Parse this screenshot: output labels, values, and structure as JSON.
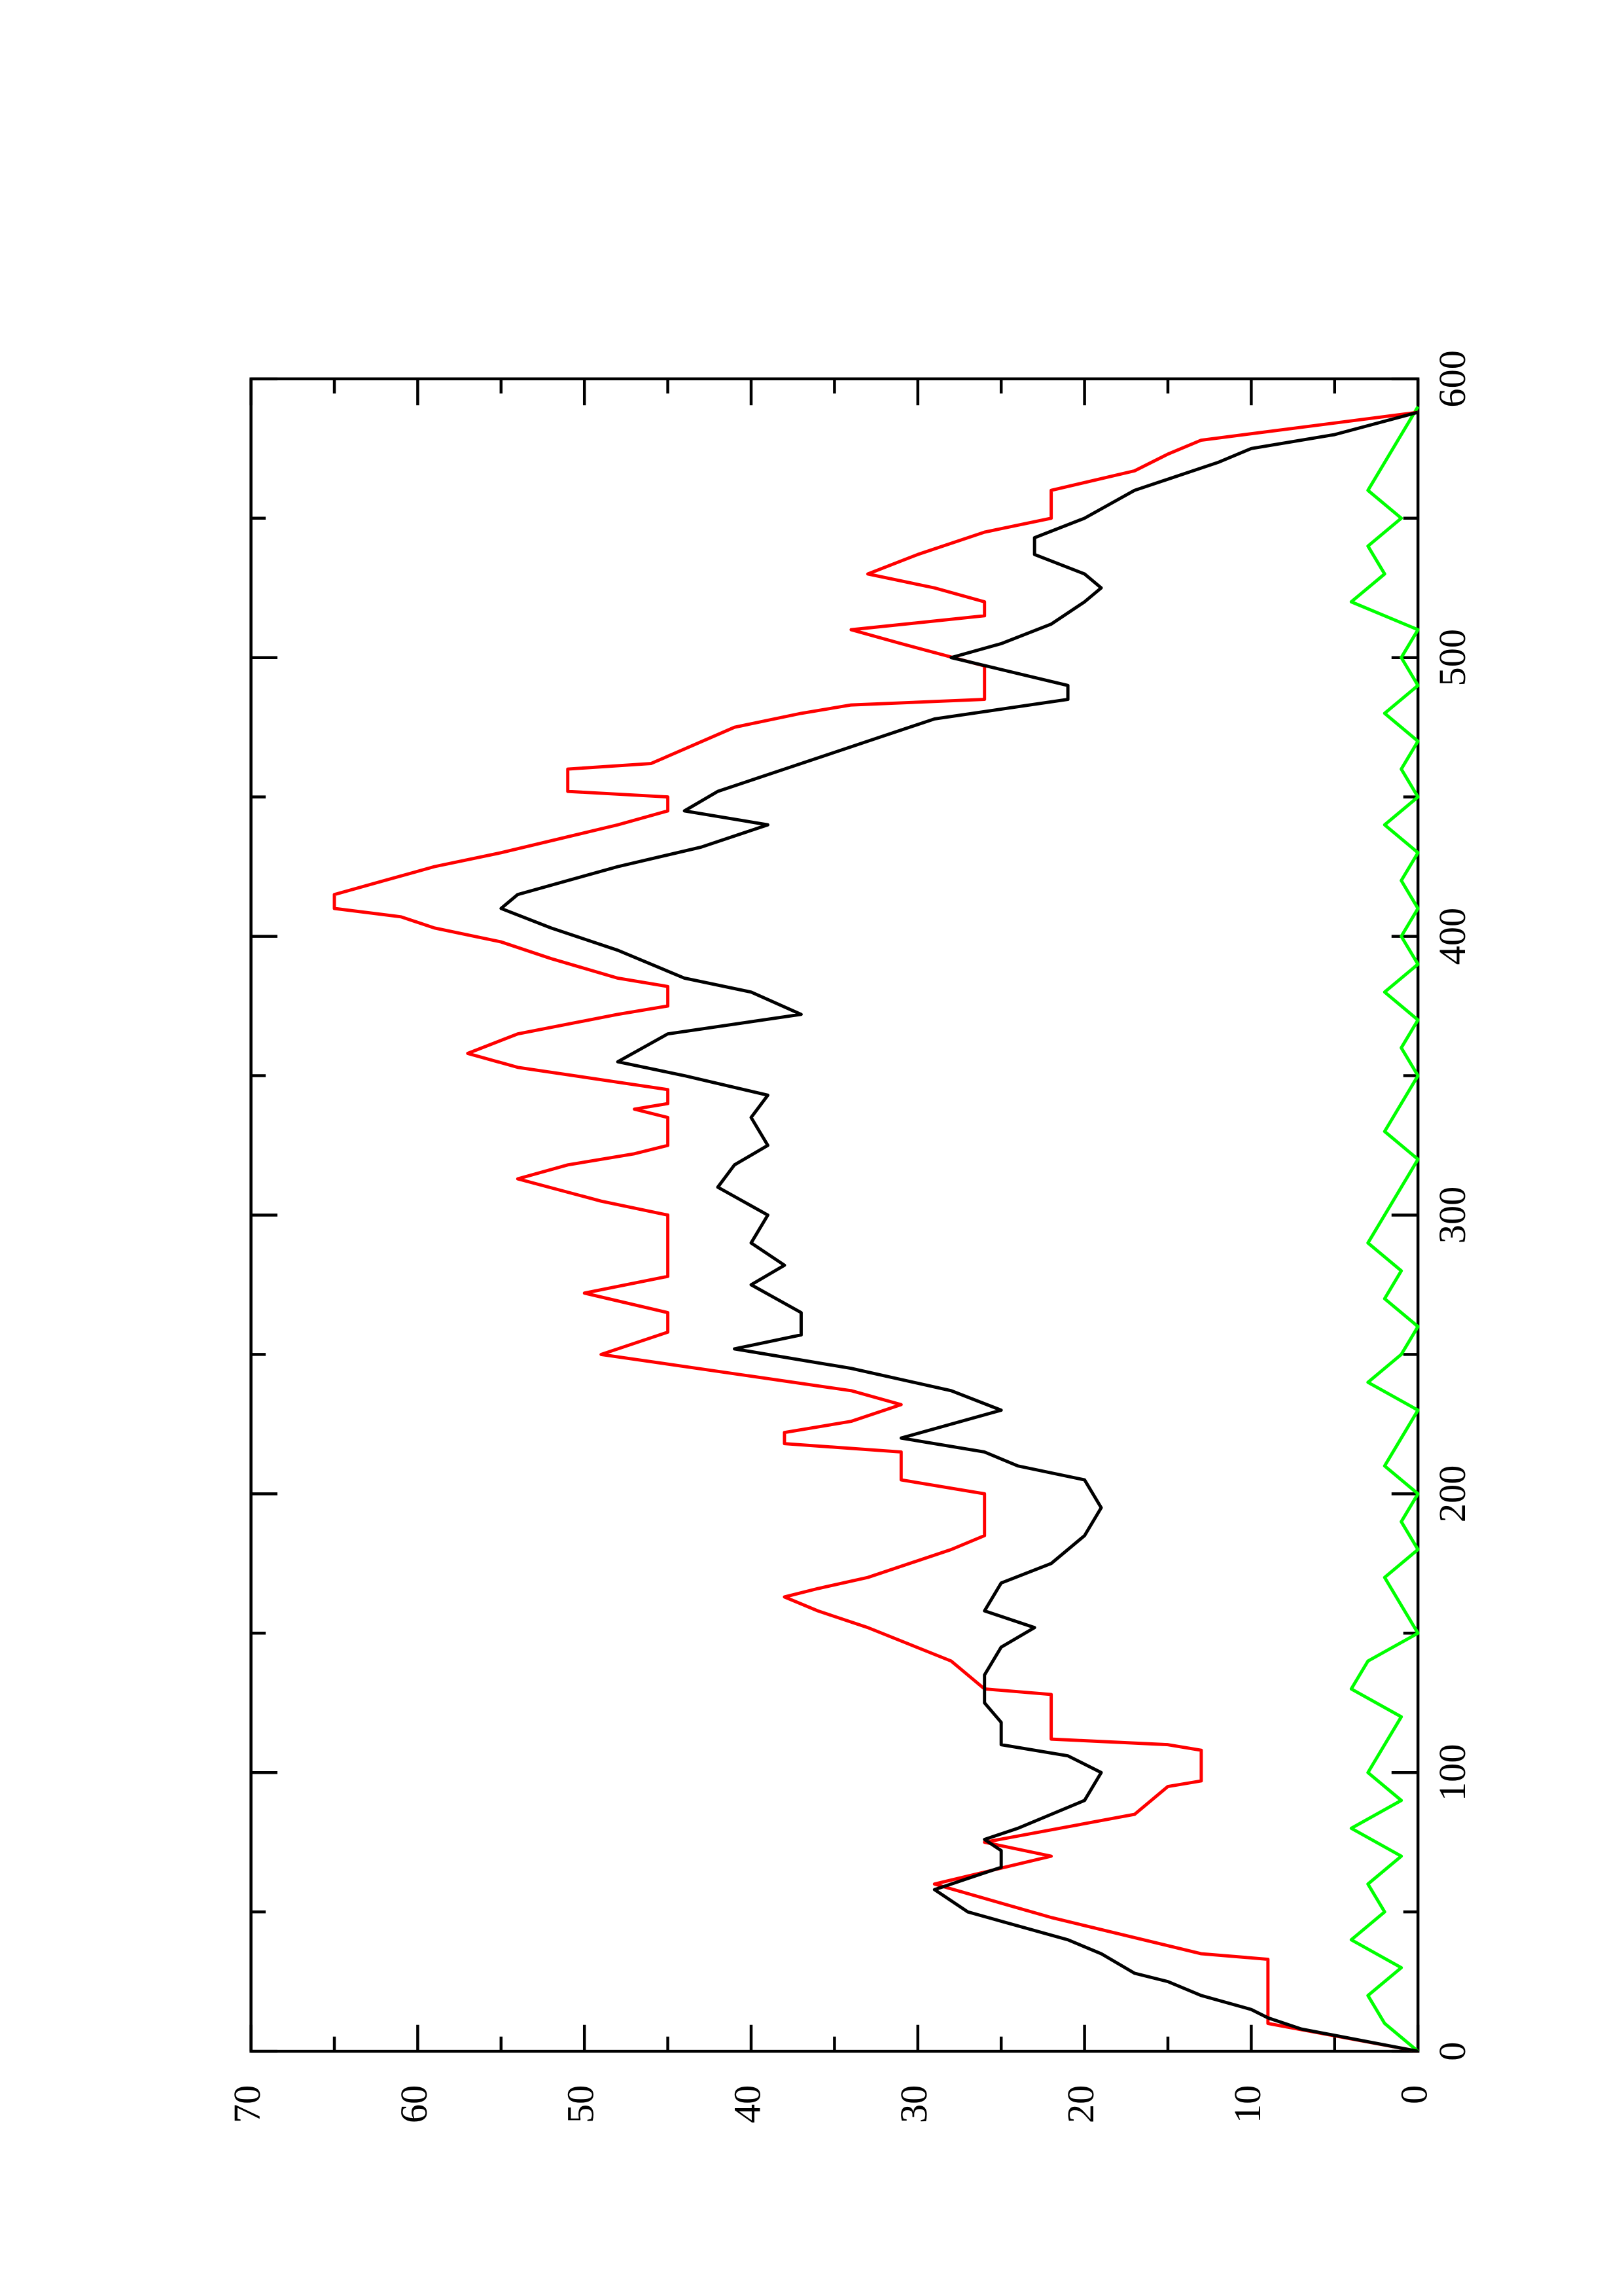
{
  "chart_data": {
    "type": "line",
    "xlim": [
      0,
      600
    ],
    "xticks": [
      0,
      100,
      200,
      300,
      400,
      500,
      600
    ],
    "xminor_ticks": [
      50,
      150,
      250,
      350,
      450,
      550
    ],
    "ylim": [
      0,
      70
    ],
    "yticks": [
      0,
      10,
      20,
      30,
      40,
      50,
      60,
      70
    ],
    "yminor_ticks": [
      5,
      15,
      25,
      35,
      45,
      55,
      65
    ],
    "rotation": -90,
    "series": [
      {
        "color": "#ff0000",
        "x": [
          0,
          10,
          33,
          35,
          48,
          60,
          70,
          75,
          85,
          95,
          97,
          108,
          110,
          112,
          128,
          130,
          140,
          152,
          158,
          163,
          166,
          170,
          180,
          185,
          200,
          205,
          215,
          218,
          222,
          226,
          232,
          237,
          250,
          258,
          265,
          272,
          278,
          300,
          305,
          313,
          318,
          322,
          325,
          335,
          338,
          340,
          345,
          353,
          358,
          365,
          372,
          375,
          382,
          385,
          392,
          398,
          403,
          407,
          410,
          415,
          420,
          425,
          430,
          440,
          445,
          450,
          452,
          460,
          462,
          475,
          480,
          483,
          485,
          497,
          505,
          510,
          515,
          520,
          525,
          530,
          537,
          545,
          550,
          560,
          567,
          573,
          578,
          588
        ],
        "values": [
          0,
          9,
          9,
          13,
          22,
          29,
          22,
          26,
          17,
          15,
          13,
          13,
          15,
          22,
          22,
          26,
          28,
          33,
          36,
          38,
          36,
          33,
          28,
          26,
          26,
          31,
          31,
          38,
          38,
          34,
          31,
          34,
          49,
          45,
          45,
          50,
          45,
          45,
          49,
          54,
          51,
          47,
          45,
          45,
          47,
          45,
          45,
          54,
          57,
          54,
          48,
          45,
          45,
          48,
          52,
          55,
          59,
          61,
          65,
          65,
          62,
          59,
          55,
          48,
          45,
          45,
          51,
          51,
          46,
          41,
          37,
          34,
          26,
          26,
          31,
          34,
          26,
          26,
          29,
          33,
          30,
          26,
          22,
          22,
          17,
          15,
          13,
          0
        ]
      },
      {
        "color": "#000000",
        "x": [
          0,
          8,
          12,
          15,
          20,
          25,
          28,
          35,
          40,
          45,
          50,
          58,
          62,
          66,
          72,
          76,
          80,
          85,
          90,
          100,
          106,
          110,
          118,
          125,
          135,
          145,
          152,
          158,
          168,
          175,
          185,
          195,
          205,
          210,
          215,
          220,
          225,
          230,
          237,
          245,
          252,
          257,
          265,
          275,
          282,
          290,
          300,
          310,
          318,
          325,
          335,
          343,
          350,
          355,
          365,
          372,
          380,
          385,
          395,
          403,
          410,
          415,
          420,
          425,
          432,
          440,
          445,
          452,
          460,
          470,
          478,
          485,
          490,
          500,
          505,
          512,
          520,
          525,
          530,
          537,
          543,
          550,
          560,
          570,
          575,
          580,
          588
        ],
        "values": [
          0,
          7,
          9,
          10,
          13,
          15,
          17,
          19,
          21,
          24,
          27,
          29,
          27,
          25,
          25,
          26,
          24,
          22,
          20,
          19,
          21,
          25,
          25,
          26,
          26,
          25,
          23,
          26,
          25,
          22,
          20,
          19,
          20,
          24,
          26,
          31,
          28,
          25,
          28,
          34,
          41,
          37,
          37,
          40,
          38,
          40,
          39,
          42,
          41,
          39,
          40,
          39,
          44,
          48,
          45,
          37,
          40,
          44,
          48,
          52,
          55,
          54,
          51,
          48,
          43,
          39,
          44,
          42,
          38,
          33,
          29,
          21,
          21,
          28,
          25,
          22,
          20,
          19,
          20,
          23,
          23,
          20,
          17,
          12,
          10,
          5,
          0
        ]
      },
      {
        "color": "#00ff00",
        "x": [
          0,
          10,
          20,
          30,
          40,
          50,
          60,
          70,
          80,
          90,
          100,
          110,
          120,
          130,
          140,
          150,
          160,
          170,
          180,
          190,
          200,
          210,
          220,
          230,
          240,
          250,
          260,
          270,
          280,
          290,
          300,
          310,
          320,
          330,
          340,
          350,
          360,
          370,
          380,
          390,
          400,
          410,
          420,
          430,
          440,
          450,
          460,
          470,
          480,
          490,
          500,
          510,
          520,
          530,
          540,
          550,
          560,
          570,
          580,
          590
        ],
        "values": [
          0,
          2,
          3,
          1,
          4,
          2,
          3,
          1,
          4,
          1,
          3,
          2,
          1,
          4,
          3,
          0,
          1,
          2,
          0,
          1,
          0,
          2,
          1,
          0,
          3,
          1,
          0,
          2,
          1,
          3,
          2,
          1,
          0,
          2,
          1,
          0,
          1,
          0,
          2,
          0,
          1,
          0,
          1,
          0,
          2,
          0,
          1,
          0,
          2,
          0,
          1,
          0,
          4,
          2,
          3,
          1,
          3,
          2,
          1,
          0
        ]
      }
    ]
  }
}
